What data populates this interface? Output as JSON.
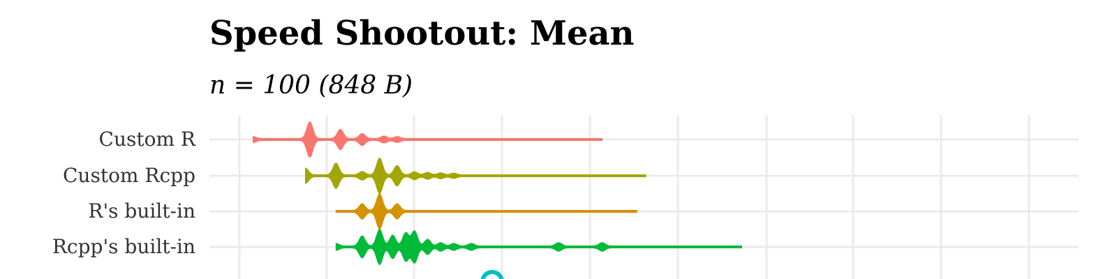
{
  "chart_data": {
    "type": "violin",
    "title": "Speed Shootout: Mean",
    "subtitle": "n = 100 (848 B)",
    "xlabel": "",
    "ylabel": "",
    "grid": true,
    "x_range": [
      0,
      100
    ],
    "categories": [
      "Custom R",
      "Custom Rcpp",
      "R's built-in",
      "Rcpp's built-in"
    ],
    "colors": [
      "#f8766d",
      "#a3a500",
      "#d39200",
      "#00ba38"
    ],
    "series": [
      {
        "category": "Custom R",
        "min": 5.0,
        "max": 45.0,
        "modes": [
          [
            5.0,
            0.12
          ],
          [
            11.5,
            1.0
          ],
          [
            15.0,
            0.55
          ],
          [
            17.5,
            0.3
          ],
          [
            20.0,
            0.15
          ],
          [
            21.5,
            0.12
          ]
        ]
      },
      {
        "category": "Custom Rcpp",
        "min": 11.0,
        "max": 50.0,
        "modes": [
          [
            11.0,
            0.4
          ],
          [
            14.5,
            0.7
          ],
          [
            17.5,
            0.2
          ],
          [
            19.5,
            1.0
          ],
          [
            21.5,
            0.55
          ],
          [
            23.5,
            0.18
          ],
          [
            25.0,
            0.15
          ],
          [
            26.5,
            0.12
          ],
          [
            28.0,
            0.1
          ]
        ]
      },
      {
        "category": "R's built-in",
        "min": 14.5,
        "max": 49.0,
        "modes": [
          [
            17.5,
            0.4
          ],
          [
            19.5,
            1.0
          ],
          [
            21.5,
            0.4
          ]
        ]
      },
      {
        "category": "Rcpp's built-in",
        "min": 14.5,
        "max": 61.0,
        "modes": [
          [
            14.5,
            0.15
          ],
          [
            17.5,
            0.6
          ],
          [
            19.5,
            1.0
          ],
          [
            21.0,
            0.65
          ],
          [
            22.5,
            0.8
          ],
          [
            23.5,
            0.9
          ],
          [
            25.0,
            0.4
          ],
          [
            26.5,
            0.2
          ],
          [
            28.0,
            0.15
          ],
          [
            30.0,
            0.15
          ],
          [
            40.0,
            0.2
          ],
          [
            45.0,
            0.2
          ]
        ]
      }
    ]
  }
}
